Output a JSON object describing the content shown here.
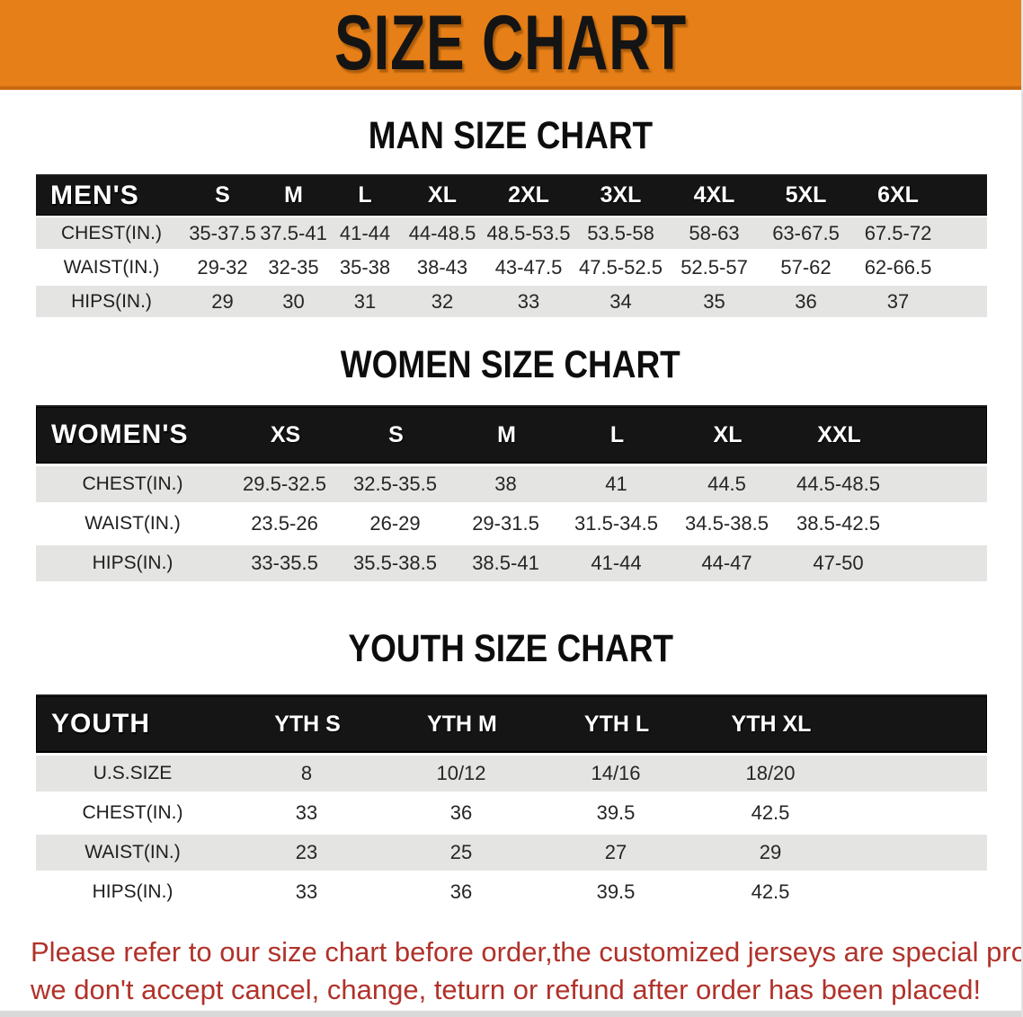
{
  "banner": {
    "title": "SIZE CHART"
  },
  "colors": {
    "banner_orange": "#E67F17",
    "table_header_black": "#151515",
    "row_shade_gray": "#E4E4E2",
    "footer_red": "#B0322A"
  },
  "men": {
    "heading": "MAN SIZE CHART",
    "table": {
      "corner": "MEN'S",
      "columns": [
        "S",
        "M",
        "L",
        "XL",
        "2XL",
        "3XL",
        "4XL",
        "5XL",
        "6XL"
      ],
      "rows": [
        {
          "label": "CHEST(IN.)",
          "shade": true,
          "cells": [
            "35-37.5",
            "37.5-41",
            "41-44",
            "44-48.5",
            "48.5-53.5",
            "53.5-58",
            "58-63",
            "63-67.5",
            "67.5-72"
          ]
        },
        {
          "label": "WAIST(IN.)",
          "shade": false,
          "cells": [
            "29-32",
            "32-35",
            "35-38",
            "38-43",
            "43-47.5",
            "47.5-52.5",
            "52.5-57",
            "57-62",
            "62-66.5"
          ]
        },
        {
          "label": "HIPS(IN.)",
          "shade": true,
          "cells": [
            "29",
            "30",
            "31",
            "32",
            "33",
            "34",
            "35",
            "36",
            "37"
          ]
        }
      ]
    }
  },
  "women": {
    "heading": "WOMEN SIZE CHART",
    "table": {
      "corner": "WOMEN'S",
      "columns": [
        "XS",
        "S",
        "M",
        "L",
        "XL",
        "XXL"
      ],
      "rows": [
        {
          "label": "CHEST(IN.)",
          "shade": true,
          "cells": [
            "29.5-32.5",
            "32.5-35.5",
            "38",
            "41",
            "44.5",
            "44.5-48.5"
          ]
        },
        {
          "label": "WAIST(IN.)",
          "shade": false,
          "cells": [
            "23.5-26",
            "26-29",
            "29-31.5",
            "31.5-34.5",
            "34.5-38.5",
            "38.5-42.5"
          ]
        },
        {
          "label": "HIPS(IN.)",
          "shade": true,
          "cells": [
            "33-35.5",
            "35.5-38.5",
            "38.5-41",
            "41-44",
            "44-47",
            "47-50"
          ]
        }
      ]
    }
  },
  "youth": {
    "heading": "YOUTH SIZE CHART",
    "table": {
      "corner": "YOUTH",
      "columns": [
        "YTH S",
        "YTH M",
        "YTH L",
        "YTH XL"
      ],
      "rows": [
        {
          "label": "U.S.SIZE",
          "shade": true,
          "cells": [
            "8",
            "10/12",
            "14/16",
            "18/20"
          ]
        },
        {
          "label": "CHEST(IN.)",
          "shade": false,
          "cells": [
            "33",
            "36",
            "39.5",
            "42.5"
          ]
        },
        {
          "label": "WAIST(IN.)",
          "shade": true,
          "cells": [
            "23",
            "25",
            "27",
            "29"
          ]
        },
        {
          "label": "HIPS(IN.)",
          "shade": false,
          "cells": [
            "33",
            "36",
            "39.5",
            "42.5"
          ]
        }
      ]
    }
  },
  "footer": {
    "line1": "Please refer to our size chart before order,the customized jerseys are special products,",
    "line2": "we don't accept cancel, change, teturn or refund after order has been placed!"
  }
}
